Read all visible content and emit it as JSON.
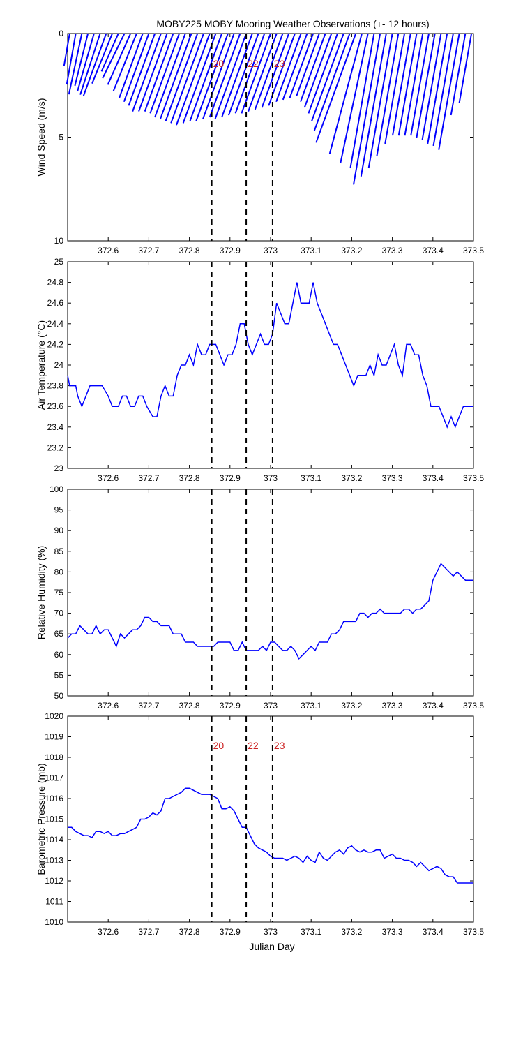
{
  "title": "MOBY225 MOBY Mooring Weather Observations (+- 12 hours)",
  "colors": {
    "series": "#0000ff",
    "marker_label": "#cc2222",
    "axis": "#000000",
    "marker_line": "#000000"
  },
  "xlabel": "Julian Day",
  "x_ticks": [
    "372.6",
    "372.7",
    "372.8",
    "372.9",
    "373",
    "373.1",
    "373.2",
    "373.3",
    "373.4",
    "373.5"
  ],
  "chart_data": [
    {
      "type": "line",
      "name": "wind",
      "ylabel": "Wind Speed (m/s)",
      "y_ticks": [
        "0",
        "5",
        "10"
      ],
      "xlim": [
        372.5,
        373.5
      ],
      "ylim": [
        10,
        0
      ],
      "y_inverted": true,
      "style": "wind-stick",
      "markers": {
        "x": [
          372.855,
          372.94,
          373.005
        ],
        "labels": [
          "20",
          "22",
          "23"
        ]
      },
      "series": [
        {
          "x": [
            372.505,
            372.52,
            372.535,
            372.55,
            372.565,
            372.58,
            372.595,
            372.61,
            372.625,
            372.64,
            372.655,
            372.67,
            372.685,
            372.7,
            372.715,
            372.73,
            372.745,
            372.76,
            372.775,
            372.79,
            372.805,
            372.82,
            372.835,
            372.85,
            372.865,
            372.88,
            372.895,
            372.91,
            372.925,
            372.94,
            372.955,
            372.97,
            372.985,
            373.0,
            373.015,
            373.03,
            373.045,
            373.06,
            373.075,
            373.09,
            373.105,
            373.12,
            373.135,
            373.15,
            373.165,
            373.18,
            373.195,
            373.21,
            373.225,
            373.24,
            373.255,
            373.27,
            373.285,
            373.3,
            373.315,
            373.33,
            373.345,
            373.36,
            373.375,
            373.39,
            373.405,
            373.42,
            373.435,
            373.45,
            373.465,
            373.48,
            373.495
          ],
          "speed": [
            1.6,
            2.5,
            3.0,
            2.6,
            2.9,
            3.1,
            3.2,
            2.6,
            2.0,
            2.4,
            2.7,
            3.0,
            3.3,
            3.5,
            3.7,
            4.0,
            4.0,
            4.0,
            4.1,
            4.3,
            4.4,
            4.5,
            4.6,
            4.7,
            4.6,
            4.5,
            4.5,
            4.4,
            4.3,
            4.4,
            4.3,
            4.2,
            4.1,
            4.1,
            4.0,
            3.9,
            3.8,
            3.7,
            3.5,
            3.4,
            3.3,
            3.2,
            3.5,
            3.8,
            4.1,
            4.5,
            5.0,
            5.6,
            6.0,
            6.4,
            6.6,
            7.4,
            7.0,
            6.6,
            6.0,
            5.4,
            5.0,
            5.0,
            5.0,
            5.0,
            5.1,
            5.2,
            5.4,
            5.5,
            5.7,
            4.0,
            3.4
          ],
          "direction_deg": [
            10,
            10,
            12,
            14,
            16,
            18,
            20,
            22,
            24,
            26,
            24,
            22,
            20,
            20,
            20,
            20,
            20,
            20,
            20,
            20,
            20,
            20,
            20,
            20,
            20,
            20,
            20,
            20,
            20,
            20,
            20,
            20,
            20,
            20,
            20,
            20,
            20,
            20,
            20,
            20,
            20,
            20,
            20,
            20,
            20,
            20,
            20,
            20,
            15,
            12,
            10,
            10,
            10,
            10,
            10,
            10,
            10,
            10,
            10,
            10,
            10,
            10,
            10,
            10,
            10,
            10,
            10
          ]
        }
      ]
    },
    {
      "type": "line",
      "name": "air-temperature",
      "ylabel": "Air Temperature (°C)",
      "y_ticks": [
        "23",
        "23.2",
        "23.4",
        "23.6",
        "23.8",
        "24",
        "24.2",
        "24.4",
        "24.6",
        "24.8",
        "25"
      ],
      "xlim": [
        372.5,
        373.5
      ],
      "ylim": [
        23,
        25
      ],
      "markers": {
        "x": [
          372.855,
          372.94,
          373.005
        ],
        "labels": []
      },
      "series": [
        {
          "x": [
            372.5,
            372.505,
            372.52,
            372.525,
            372.535,
            372.545,
            372.555,
            372.57,
            372.585,
            372.6,
            372.61,
            372.625,
            372.635,
            372.645,
            372.655,
            372.665,
            372.675,
            372.685,
            372.695,
            372.71,
            372.72,
            372.73,
            372.74,
            372.75,
            372.76,
            372.77,
            372.78,
            372.79,
            372.8,
            372.81,
            372.82,
            372.83,
            372.84,
            372.85,
            372.865,
            372.875,
            372.885,
            372.895,
            372.905,
            372.915,
            372.925,
            372.935,
            372.945,
            372.955,
            372.965,
            372.975,
            372.985,
            372.995,
            373.005,
            373.015,
            373.025,
            373.035,
            373.045,
            373.055,
            373.065,
            373.075,
            373.085,
            373.095,
            373.105,
            373.115,
            373.125,
            373.135,
            373.145,
            373.155,
            373.165,
            373.175,
            373.185,
            373.195,
            373.205,
            373.215,
            373.225,
            373.235,
            373.245,
            373.255,
            373.265,
            373.275,
            373.285,
            373.295,
            373.305,
            373.315,
            373.325,
            373.335,
            373.345,
            373.355,
            373.365,
            373.375,
            373.385,
            373.395,
            373.405,
            373.415,
            373.425,
            373.435,
            373.445,
            373.455,
            373.465,
            373.475,
            373.485,
            373.495,
            373.5
          ],
          "y": [
            23.9,
            23.8,
            23.8,
            23.7,
            23.6,
            23.7,
            23.8,
            23.8,
            23.8,
            23.7,
            23.6,
            23.6,
            23.7,
            23.7,
            23.6,
            23.6,
            23.7,
            23.7,
            23.6,
            23.5,
            23.5,
            23.7,
            23.8,
            23.7,
            23.7,
            23.9,
            24.0,
            24.0,
            24.1,
            24.0,
            24.2,
            24.1,
            24.1,
            24.2,
            24.2,
            24.1,
            24.0,
            24.1,
            24.1,
            24.2,
            24.4,
            24.4,
            24.2,
            24.1,
            24.2,
            24.3,
            24.2,
            24.2,
            24.3,
            24.6,
            24.5,
            24.4,
            24.4,
            24.6,
            24.8,
            24.6,
            24.6,
            24.6,
            24.8,
            24.6,
            24.5,
            24.4,
            24.3,
            24.2,
            24.2,
            24.1,
            24.0,
            23.9,
            23.8,
            23.9,
            23.9,
            23.9,
            24.0,
            23.9,
            24.1,
            24.0,
            24.0,
            24.1,
            24.2,
            24.0,
            23.9,
            24.2,
            24.2,
            24.1,
            24.1,
            23.9,
            23.8,
            23.6,
            23.6,
            23.6,
            23.5,
            23.4,
            23.5,
            23.4,
            23.5,
            23.6,
            23.6,
            23.6,
            23.6
          ]
        }
      ]
    },
    {
      "type": "line",
      "name": "relative-humidity",
      "ylabel": "Relative Humidity (%)",
      "y_ticks": [
        "50",
        "55",
        "60",
        "65",
        "70",
        "75",
        "80",
        "85",
        "90",
        "95",
        "100"
      ],
      "xlim": [
        372.5,
        373.5
      ],
      "ylim": [
        50,
        100
      ],
      "markers": {
        "x": [
          372.855,
          372.94,
          373.005
        ],
        "labels": []
      },
      "series": [
        {
          "x": [
            372.5,
            372.51,
            372.52,
            372.53,
            372.54,
            372.55,
            372.56,
            372.57,
            372.58,
            372.59,
            372.6,
            372.61,
            372.62,
            372.63,
            372.64,
            372.65,
            372.66,
            372.67,
            372.68,
            372.69,
            372.7,
            372.71,
            372.72,
            372.73,
            372.74,
            372.75,
            372.76,
            372.77,
            372.78,
            372.79,
            372.8,
            372.81,
            372.82,
            372.83,
            372.84,
            372.85,
            372.86,
            372.87,
            372.88,
            372.89,
            372.9,
            372.91,
            372.92,
            372.93,
            372.94,
            372.95,
            372.96,
            372.97,
            372.98,
            372.99,
            373.0,
            373.01,
            373.02,
            373.03,
            373.04,
            373.05,
            373.06,
            373.07,
            373.08,
            373.09,
            373.1,
            373.11,
            373.12,
            373.13,
            373.14,
            373.15,
            373.16,
            373.17,
            373.18,
            373.19,
            373.2,
            373.21,
            373.22,
            373.23,
            373.24,
            373.25,
            373.26,
            373.27,
            373.28,
            373.29,
            373.3,
            373.31,
            373.32,
            373.33,
            373.34,
            373.35,
            373.36,
            373.37,
            373.38,
            373.39,
            373.4,
            373.41,
            373.42,
            373.43,
            373.44,
            373.45,
            373.46,
            373.47,
            373.48,
            373.49,
            373.5
          ],
          "y": [
            64,
            65,
            65,
            67,
            66,
            65,
            65,
            67,
            65,
            66,
            66,
            64,
            62,
            65,
            64,
            65,
            66,
            66,
            67,
            69,
            69,
            68,
            68,
            67,
            67,
            67,
            65,
            65,
            65,
            63,
            63,
            63,
            62,
            62,
            62,
            62,
            62,
            63,
            63,
            63,
            63,
            61,
            61,
            63,
            61,
            61,
            61,
            61,
            62,
            61,
            63,
            63,
            62,
            61,
            61,
            62,
            61,
            59,
            60,
            61,
            62,
            61,
            63,
            63,
            63,
            65,
            65,
            66,
            68,
            68,
            68,
            68,
            70,
            70,
            69,
            70,
            70,
            71,
            70,
            70,
            70,
            70,
            70,
            71,
            71,
            70,
            71,
            71,
            72,
            73,
            78,
            80,
            82,
            81,
            80,
            79,
            80,
            79,
            78,
            78,
            78
          ]
        }
      ]
    },
    {
      "type": "line",
      "name": "barometric-pressure",
      "ylabel": "Barometric Pressure (mb)",
      "y_ticks": [
        "1010",
        "1011",
        "1012",
        "1013",
        "1014",
        "1015",
        "1016",
        "1017",
        "1018",
        "1019",
        "1020"
      ],
      "xlim": [
        372.5,
        373.5
      ],
      "ylim": [
        1010,
        1020
      ],
      "markers": {
        "x": [
          372.855,
          372.94,
          373.005
        ],
        "labels": [
          "20",
          "22",
          "23"
        ]
      },
      "series": [
        {
          "x": [
            372.5,
            372.51,
            372.52,
            372.53,
            372.54,
            372.55,
            372.56,
            372.57,
            372.58,
            372.59,
            372.6,
            372.61,
            372.62,
            372.63,
            372.64,
            372.65,
            372.66,
            372.67,
            372.68,
            372.69,
            372.7,
            372.71,
            372.72,
            372.73,
            372.74,
            372.75,
            372.76,
            372.77,
            372.78,
            372.79,
            372.8,
            372.81,
            372.82,
            372.83,
            372.84,
            372.85,
            372.86,
            372.87,
            372.88,
            372.89,
            372.9,
            372.91,
            372.92,
            372.93,
            372.94,
            372.95,
            372.96,
            372.97,
            372.98,
            372.99,
            373.0,
            373.01,
            373.02,
            373.03,
            373.04,
            373.05,
            373.06,
            373.07,
            373.08,
            373.09,
            373.1,
            373.11,
            373.12,
            373.13,
            373.14,
            373.15,
            373.16,
            373.17,
            373.18,
            373.19,
            373.2,
            373.21,
            373.22,
            373.23,
            373.24,
            373.25,
            373.26,
            373.27,
            373.28,
            373.29,
            373.3,
            373.31,
            373.32,
            373.33,
            373.34,
            373.35,
            373.36,
            373.37,
            373.38,
            373.39,
            373.4,
            373.41,
            373.42,
            373.43,
            373.44,
            373.45,
            373.46,
            373.47,
            373.48,
            373.49,
            373.5
          ],
          "y": [
            1014.6,
            1014.6,
            1014.4,
            1014.3,
            1014.2,
            1014.2,
            1014.1,
            1014.4,
            1014.4,
            1014.3,
            1014.4,
            1014.2,
            1014.2,
            1014.3,
            1014.3,
            1014.4,
            1014.5,
            1014.6,
            1015.0,
            1015.0,
            1015.1,
            1015.3,
            1015.2,
            1015.4,
            1016.0,
            1016.0,
            1016.1,
            1016.2,
            1016.3,
            1016.5,
            1016.5,
            1016.4,
            1016.3,
            1016.2,
            1016.2,
            1016.2,
            1016.1,
            1016.0,
            1015.5,
            1015.5,
            1015.6,
            1015.4,
            1015.0,
            1014.6,
            1014.6,
            1014.2,
            1013.8,
            1013.6,
            1013.5,
            1013.4,
            1013.2,
            1013.1,
            1013.1,
            1013.1,
            1013.0,
            1013.1,
            1013.2,
            1013.1,
            1012.9,
            1013.2,
            1013.0,
            1012.9,
            1013.4,
            1013.1,
            1013.0,
            1013.2,
            1013.4,
            1013.5,
            1013.3,
            1013.6,
            1013.7,
            1013.5,
            1013.4,
            1013.5,
            1013.4,
            1013.4,
            1013.5,
            1013.5,
            1013.1,
            1013.2,
            1013.3,
            1013.1,
            1013.1,
            1013.0,
            1013.0,
            1012.9,
            1012.7,
            1012.9,
            1012.7,
            1012.5,
            1012.6,
            1012.7,
            1012.6,
            1012.3,
            1012.2,
            1012.2,
            1011.9,
            1011.9,
            1011.9,
            1011.9,
            1011.9
          ]
        }
      ]
    }
  ]
}
